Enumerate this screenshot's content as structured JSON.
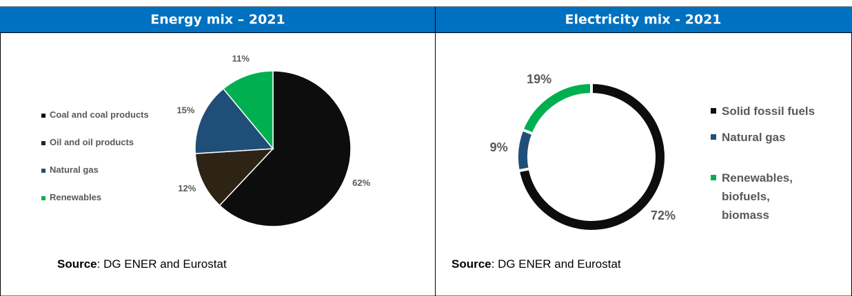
{
  "chart_data": [
    {
      "type": "pie",
      "title": "Energy mix – 2021",
      "categories": [
        "Coal and coal products",
        "Oil and oil products",
        "Natural gas",
        "Renewables"
      ],
      "values": [
        62,
        12,
        15,
        11
      ],
      "value_labels": [
        "62%",
        "12%",
        "15%",
        "11%"
      ],
      "colors": [
        "#0d0d0d",
        "#2e2416",
        "#1f4e79",
        "#00b050"
      ],
      "source_label": "Source",
      "source": ": DG ENER and Eurostat"
    },
    {
      "type": "donut",
      "title": "Electricity mix - 2021",
      "categories": [
        "Solid fossil fuels",
        "Natural gas",
        "Renewables, biofuels, biomass"
      ],
      "values": [
        72,
        9,
        19
      ],
      "value_labels": [
        "72%",
        "9%",
        "19%"
      ],
      "colors": [
        "#0d0d0d",
        "#1f4e79",
        "#00b050"
      ],
      "source_label": "Source",
      "source": ": DG ENER and Eurostat"
    }
  ]
}
